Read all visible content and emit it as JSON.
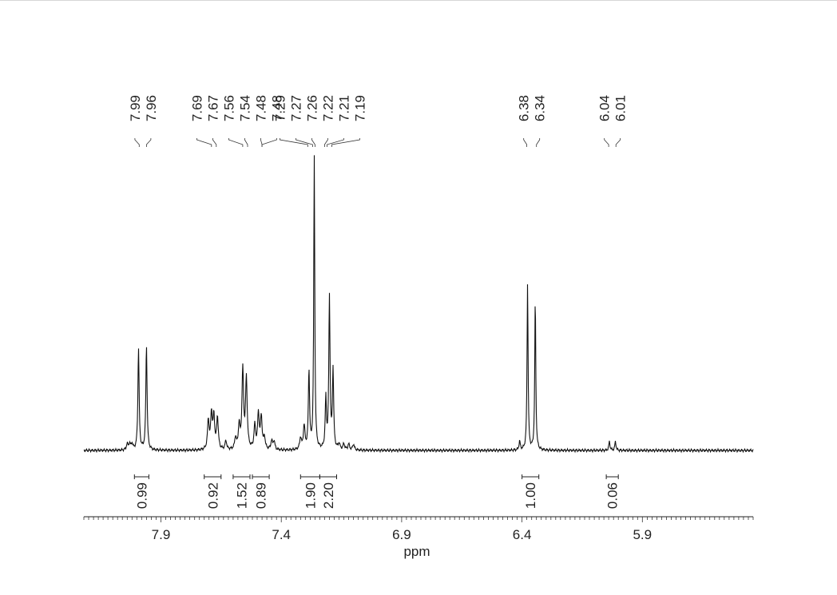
{
  "chart_data": {
    "type": "line",
    "xlabel": "ppm",
    "x_reversed": true,
    "xlim": [
      8.22,
      5.44
    ],
    "ylim": [
      0,
      1
    ],
    "x_ticks": [
      7.9,
      7.4,
      6.9,
      6.4,
      5.9
    ],
    "x_tick_labels": [
      "7.9",
      "7.4",
      "6.9",
      "6.4",
      "5.9"
    ],
    "peak_labels": [
      "7.99",
      "7.96",
      "7.69",
      "7.67",
      "7.56",
      "7.54",
      "7.48",
      "7.48",
      "7.29",
      "7.27",
      "7.26",
      "7.22",
      "7.21",
      "7.19",
      "6.38",
      "6.34",
      "6.04",
      "6.01"
    ],
    "peak_positions": [
      7.99,
      7.96,
      7.69,
      7.67,
      7.56,
      7.54,
      7.48,
      7.48,
      7.29,
      7.27,
      7.26,
      7.22,
      7.21,
      7.19,
      6.38,
      6.34,
      6.04,
      6.01
    ],
    "peaks": [
      {
        "ppm": 8.04,
        "height": 0.02,
        "width": 0.004
      },
      {
        "ppm": 8.03,
        "height": 0.02,
        "width": 0.004
      },
      {
        "ppm": 8.02,
        "height": 0.02,
        "width": 0.004
      },
      {
        "ppm": 7.993,
        "height": 0.35,
        "width": 0.003
      },
      {
        "ppm": 7.96,
        "height": 0.36,
        "width": 0.003
      },
      {
        "ppm": 7.703,
        "height": 0.1,
        "width": 0.004
      },
      {
        "ppm": 7.69,
        "height": 0.12,
        "width": 0.004
      },
      {
        "ppm": 7.68,
        "height": 0.11,
        "width": 0.004
      },
      {
        "ppm": 7.665,
        "height": 0.11,
        "width": 0.004
      },
      {
        "ppm": 7.63,
        "height": 0.03,
        "width": 0.004
      },
      {
        "ppm": 7.59,
        "height": 0.04,
        "width": 0.004
      },
      {
        "ppm": 7.575,
        "height": 0.08,
        "width": 0.004
      },
      {
        "ppm": 7.56,
        "height": 0.27,
        "width": 0.004
      },
      {
        "ppm": 7.545,
        "height": 0.24,
        "width": 0.004
      },
      {
        "ppm": 7.51,
        "height": 0.08,
        "width": 0.004
      },
      {
        "ppm": 7.495,
        "height": 0.12,
        "width": 0.004
      },
      {
        "ppm": 7.483,
        "height": 0.11,
        "width": 0.004
      },
      {
        "ppm": 7.47,
        "height": 0.04,
        "width": 0.004
      },
      {
        "ppm": 7.44,
        "height": 0.03,
        "width": 0.004
      },
      {
        "ppm": 7.43,
        "height": 0.03,
        "width": 0.004
      },
      {
        "ppm": 7.32,
        "height": 0.04,
        "width": 0.004
      },
      {
        "ppm": 7.305,
        "height": 0.08,
        "width": 0.004
      },
      {
        "ppm": 7.285,
        "height": 0.27,
        "width": 0.003
      },
      {
        "ppm": 7.263,
        "height": 1.0,
        "width": 0.0025
      },
      {
        "ppm": 7.215,
        "height": 0.17,
        "width": 0.003
      },
      {
        "ppm": 7.2,
        "height": 0.52,
        "width": 0.003
      },
      {
        "ppm": 7.185,
        "height": 0.27,
        "width": 0.003
      },
      {
        "ppm": 7.16,
        "height": 0.02,
        "width": 0.004
      },
      {
        "ppm": 7.14,
        "height": 0.02,
        "width": 0.004
      },
      {
        "ppm": 7.12,
        "height": 0.02,
        "width": 0.004
      },
      {
        "ppm": 7.1,
        "height": 0.02,
        "width": 0.004
      },
      {
        "ppm": 6.41,
        "height": 0.03,
        "width": 0.003
      },
      {
        "ppm": 6.377,
        "height": 0.57,
        "width": 0.0025
      },
      {
        "ppm": 6.345,
        "height": 0.52,
        "width": 0.0025
      },
      {
        "ppm": 6.037,
        "height": 0.03,
        "width": 0.003
      },
      {
        "ppm": 6.012,
        "height": 0.03,
        "width": 0.003
      }
    ],
    "integrals": [
      {
        "label": "0.99",
        "from": 8.01,
        "to": 7.95
      },
      {
        "label": "0.92",
        "from": 7.72,
        "to": 7.65
      },
      {
        "label": "1.52",
        "from": 7.6,
        "to": 7.53
      },
      {
        "label": "0.89",
        "from": 7.52,
        "to": 7.45
      },
      {
        "label": "1.90",
        "from": 7.32,
        "to": 7.24
      },
      {
        "label": "2.20",
        "from": 7.24,
        "to": 7.17
      },
      {
        "label": "1.00",
        "from": 6.4,
        "to": 6.33
      },
      {
        "label": "0.06",
        "from": 6.05,
        "to": 6.0
      }
    ]
  }
}
